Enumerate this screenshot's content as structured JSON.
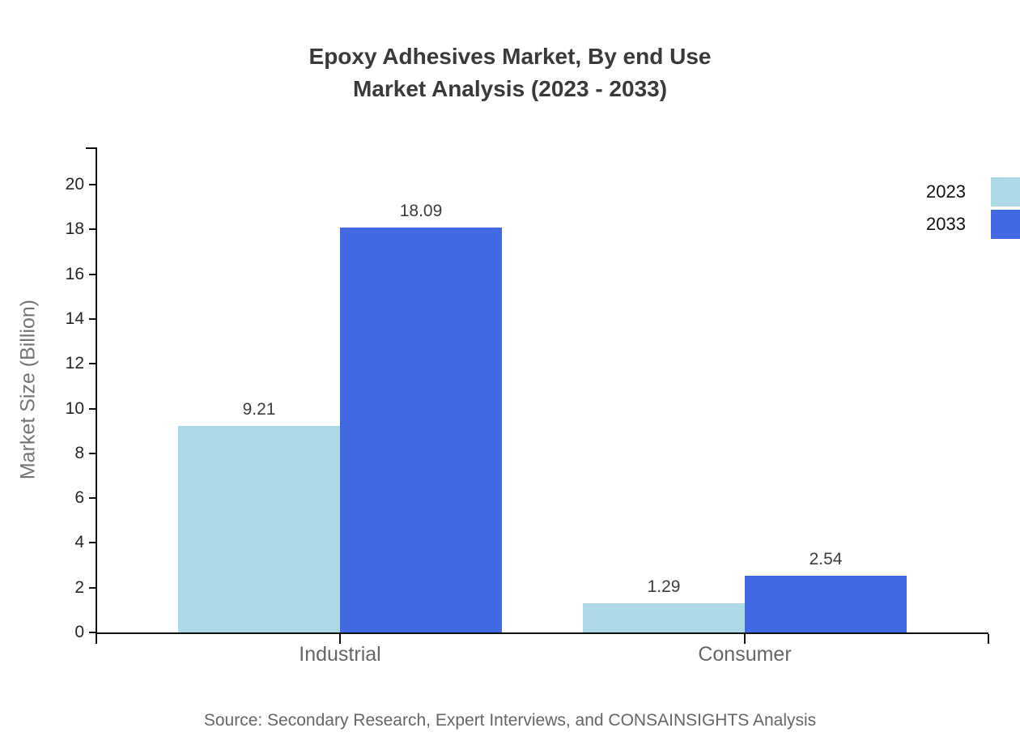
{
  "title": {
    "line1": "Epoxy Adhesives Market, By end Use",
    "line2": "Market Analysis (2023 - 2033)"
  },
  "chart_data": {
    "type": "bar",
    "title": "Epoxy Adhesives Market, By end Use Market Analysis (2023 - 2033)",
    "categories": [
      "Industrial",
      "Consumer"
    ],
    "series": [
      {
        "name": "2023",
        "color": "#ADD8E6",
        "values": [
          9.21,
          1.29
        ]
      },
      {
        "name": "2033",
        "color": "#4169E1",
        "values": [
          18.09,
          2.54
        ]
      }
    ],
    "xlabel": "",
    "ylabel": "Market Size (Billion)",
    "ylim": [
      0,
      20
    ],
    "yticks": [
      0,
      2,
      4,
      6,
      8,
      10,
      12,
      14,
      16,
      18,
      20
    ],
    "grid": false,
    "legend_position": "top-right",
    "value_labels": true,
    "value_label_format": "2-decimals"
  },
  "colors": {
    "axis": "#111111",
    "title_text": "#3a3a3a",
    "tick_text": "#262626",
    "category_text": "#666666",
    "value_label_text": "#3d3d3d",
    "axis_title_text": "#757575",
    "source_text": "#666666",
    "background": "#ffffff"
  },
  "source": "Source: Secondary Research, Expert Interviews, and CONSAINSIGHTS Analysis"
}
